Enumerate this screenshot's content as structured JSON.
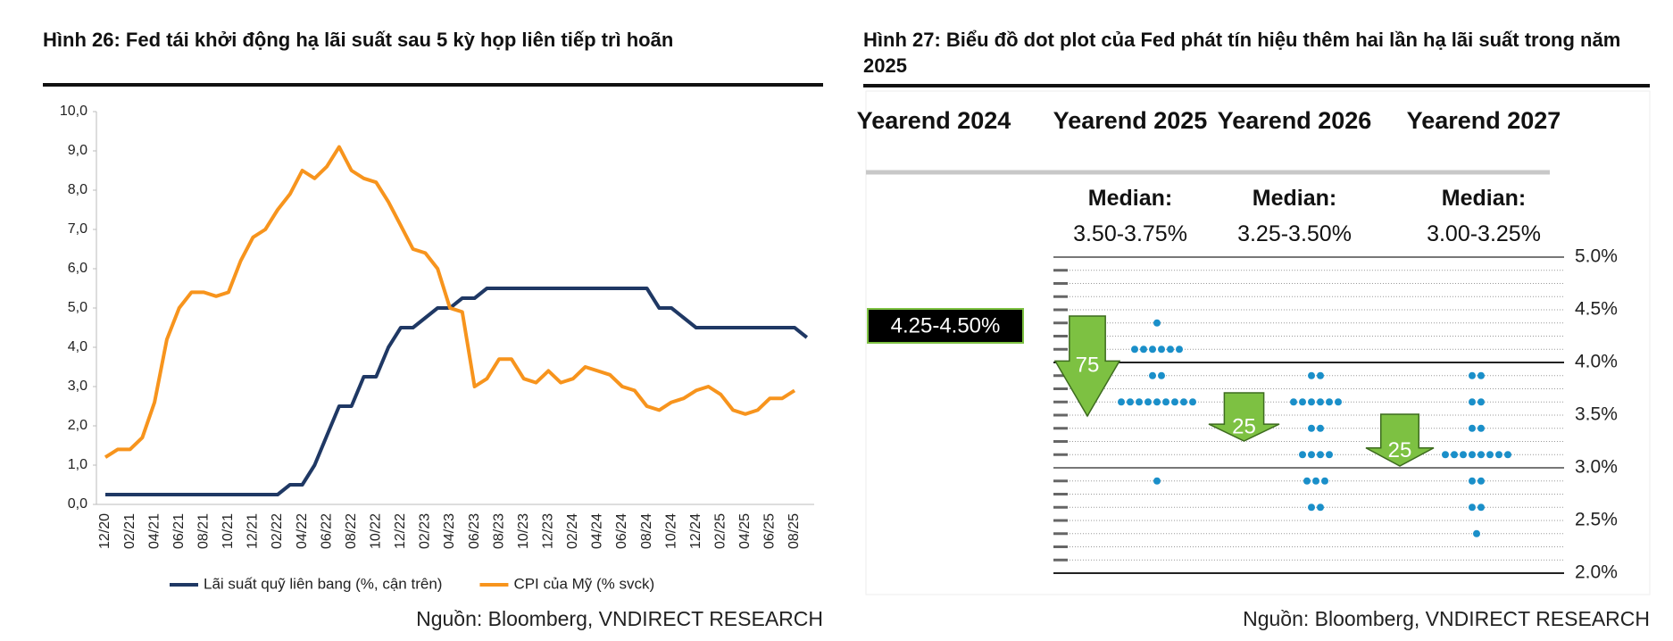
{
  "chart_data": [
    {
      "type": "line",
      "title": "Hình 26: Fed tái khởi động hạ lãi suất sau 5 kỳ họp liên tiếp trì hoãn",
      "categories": [
        "12/20",
        null,
        "02/21",
        null,
        "04/21",
        null,
        "06/21",
        null,
        "08/21",
        null,
        "10/21",
        null,
        "12/21",
        null,
        "02/22",
        null,
        "04/22",
        null,
        "06/22",
        null,
        "08/22",
        null,
        "10/22",
        null,
        "12/22",
        null,
        "02/23",
        null,
        "04/23",
        null,
        "06/23",
        null,
        "08/23",
        null,
        "10/23",
        null,
        "12/23",
        null,
        "02/24",
        null,
        "04/24",
        null,
        "06/24",
        null,
        "08/24",
        null,
        "10/24",
        null,
        "12/24",
        null,
        "02/25",
        null,
        "04/25",
        null,
        "06/25",
        null,
        "08/25",
        null
      ],
      "series": [
        {
          "name": "Lãi suất quỹ liên bang (%, cận trên)",
          "color": "#1f3864",
          "values": [
            0.25,
            0.25,
            0.25,
            0.25,
            0.25,
            0.25,
            0.25,
            0.25,
            0.25,
            0.25,
            0.25,
            0.25,
            0.25,
            0.25,
            0.25,
            0.5,
            0.5,
            1.0,
            1.75,
            2.5,
            2.5,
            3.25,
            3.25,
            4.0,
            4.5,
            4.5,
            4.75,
            5.0,
            5.0,
            5.25,
            5.25,
            5.5,
            5.5,
            5.5,
            5.5,
            5.5,
            5.5,
            5.5,
            5.5,
            5.5,
            5.5,
            5.5,
            5.5,
            5.5,
            5.5,
            5.0,
            5.0,
            4.75,
            4.5,
            4.5,
            4.5,
            4.5,
            4.5,
            4.5,
            4.5,
            4.5,
            4.5,
            4.25
          ]
        },
        {
          "name": "CPI của Mỹ (% svck)",
          "color": "#f7941d",
          "values": [
            1.2,
            1.4,
            1.4,
            1.7,
            2.6,
            4.2,
            5.0,
            5.4,
            5.4,
            5.3,
            5.4,
            6.2,
            6.8,
            7.0,
            7.5,
            7.9,
            8.5,
            8.3,
            8.6,
            9.1,
            8.5,
            8.3,
            8.2,
            7.7,
            7.1,
            6.5,
            6.4,
            6.0,
            5.0,
            4.9,
            3.0,
            3.2,
            3.7,
            3.7,
            3.2,
            3.1,
            3.4,
            3.1,
            3.2,
            3.5,
            3.4,
            3.3,
            3.0,
            2.9,
            2.5,
            2.4,
            2.6,
            2.7,
            2.9,
            3.0,
            2.8,
            2.4,
            2.3,
            2.4,
            2.7,
            2.7,
            2.9,
            null
          ]
        }
      ],
      "ylim": [
        0,
        10
      ],
      "yticks": [
        {
          "value": 0,
          "label": "0,0"
        },
        {
          "value": 1,
          "label": "1,0"
        },
        {
          "value": 2,
          "label": "2,0"
        },
        {
          "value": 3,
          "label": "3,0"
        },
        {
          "value": 4,
          "label": "4,0"
        },
        {
          "value": 5,
          "label": "5,0"
        },
        {
          "value": 6,
          "label": "6,0"
        },
        {
          "value": 7,
          "label": "7,0"
        },
        {
          "value": 8,
          "label": "8,0"
        },
        {
          "value": 9,
          "label": "9,0"
        },
        {
          "value": 10,
          "label": "10,0"
        }
      ],
      "legend": "bottom",
      "source": "Nguồn: Bloomberg, VNDIRECT RESEARCH"
    },
    {
      "type": "dot_plot",
      "title": "Hình 27: Biểu đồ dot plot của Fed phát tín hiệu thêm hai lần hạ lãi suất trong năm 2025",
      "median_label": "Median:",
      "columns": [
        {
          "header": "Yearend 2024"
        },
        {
          "header": "Yearend 2025",
          "median": "3.50-3.75%",
          "dots": [
            {
              "rate": 4.375,
              "count": 1
            },
            {
              "rate": 4.125,
              "count": 6
            },
            {
              "rate": 3.875,
              "count": 2
            },
            {
              "rate": 3.625,
              "count": 9
            },
            {
              "rate": 2.875,
              "count": 1
            }
          ]
        },
        {
          "header": "Yearend 2026",
          "median": "3.25-3.50%",
          "dots": [
            {
              "rate": 3.875,
              "count": 2
            },
            {
              "rate": 3.625,
              "count": 6
            },
            {
              "rate": 3.375,
              "count": 2
            },
            {
              "rate": 3.125,
              "count": 4
            },
            {
              "rate": 2.875,
              "count": 3
            },
            {
              "rate": 2.625,
              "count": 2
            }
          ]
        },
        {
          "header": "Yearend 2027",
          "median": "3.00-3.25%",
          "dots": [
            {
              "rate": 3.875,
              "count": 2
            },
            {
              "rate": 3.625,
              "count": 2
            },
            {
              "rate": 3.375,
              "count": 2
            },
            {
              "rate": 3.125,
              "count": 8
            },
            {
              "rate": 2.875,
              "count": 2
            },
            {
              "rate": 2.625,
              "count": 2
            },
            {
              "rate": 2.375,
              "count": 1
            }
          ]
        }
      ],
      "current_range": "4.25-4.50%",
      "cuts": [
        75,
        25,
        25
      ],
      "ylim": [
        2,
        5
      ],
      "yticks": [
        {
          "value": 5,
          "label": "5.0%"
        },
        {
          "value": 4.5,
          "label": "4.5%"
        },
        {
          "value": 4,
          "label": "4.0%"
        },
        {
          "value": 3.5,
          "label": "3.5%"
        },
        {
          "value": 3,
          "label": "3.0%"
        },
        {
          "value": 2.5,
          "label": "2.5%"
        },
        {
          "value": 2,
          "label": "2.0%"
        }
      ],
      "minor_yticks": [
        4.875,
        4.75,
        4.625,
        4.375,
        4.25,
        4.125,
        3.875,
        3.75,
        3.625,
        3.375,
        3.25,
        3.125,
        2.875,
        2.75,
        2.625,
        2.375,
        2.25,
        2.125
      ],
      "dot_color": "#1a8fc9",
      "arrow_color": "#7dc142",
      "source": "Nguồn: Bloomberg, VNDIRECT RESEARCH"
    }
  ]
}
